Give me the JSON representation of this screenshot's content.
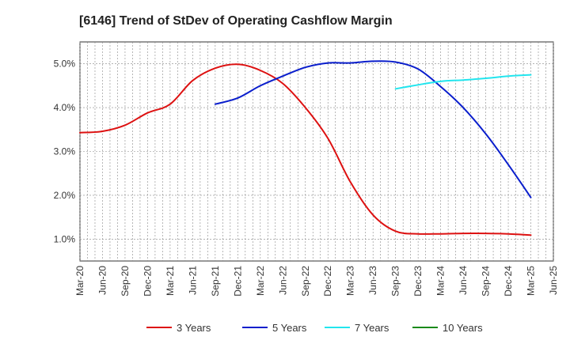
{
  "chart_data": {
    "type": "line",
    "title": "[6146]  Trend of StDev of Operating Cashflow Margin",
    "xlabel": "",
    "ylabel": "",
    "ylim": [
      0.5,
      5.5
    ],
    "y_ticks": [
      1.0,
      2.0,
      3.0,
      4.0,
      5.0
    ],
    "y_tick_labels": [
      "1.0%",
      "2.0%",
      "3.0%",
      "4.0%",
      "5.0%"
    ],
    "x_tick_labels": [
      "Mar-20",
      "Jun-20",
      "Sep-20",
      "Dec-20",
      "Mar-21",
      "Jun-21",
      "Sep-21",
      "Dec-21",
      "Mar-22",
      "Jun-22",
      "Sep-22",
      "Dec-22",
      "Mar-23",
      "Jun-23",
      "Sep-23",
      "Dec-23",
      "Mar-24",
      "Jun-24",
      "Sep-24",
      "Dec-24",
      "Mar-25",
      "Jun-25"
    ],
    "grid": true,
    "legend_position": "bottom",
    "series": [
      {
        "name": "3 Years",
        "color": "#dd1111",
        "x": [
          "Mar-20",
          "Jun-20",
          "Sep-20",
          "Dec-20",
          "Mar-21",
          "Jun-21",
          "Sep-21",
          "Dec-21",
          "Mar-22",
          "Jun-22",
          "Sep-22",
          "Dec-22",
          "Mar-23",
          "Jun-23",
          "Sep-23",
          "Dec-23",
          "Mar-24",
          "Jun-24",
          "Sep-24",
          "Dec-24",
          "Mar-25"
        ],
        "values": [
          3.43,
          3.46,
          3.6,
          3.88,
          4.08,
          4.62,
          4.9,
          4.99,
          4.85,
          4.55,
          4.0,
          3.3,
          2.3,
          1.55,
          1.18,
          1.12,
          1.12,
          1.13,
          1.13,
          1.12,
          1.09
        ]
      },
      {
        "name": "5 Years",
        "color": "#0a1ecc",
        "x": [
          "Sep-21",
          "Dec-21",
          "Mar-22",
          "Jun-22",
          "Sep-22",
          "Dec-22",
          "Mar-23",
          "Jun-23",
          "Sep-23",
          "Dec-23",
          "Mar-24",
          "Jun-24",
          "Sep-24",
          "Dec-24",
          "Mar-25"
        ],
        "values": [
          4.08,
          4.22,
          4.5,
          4.72,
          4.92,
          5.02,
          5.02,
          5.06,
          5.04,
          4.88,
          4.48,
          4.0,
          3.4,
          2.7,
          1.95
        ]
      },
      {
        "name": "7 Years",
        "color": "#22e5ee",
        "x": [
          "Sep-23",
          "Dec-23",
          "Mar-24",
          "Jun-24",
          "Sep-24",
          "Dec-24",
          "Mar-25"
        ],
        "values": [
          4.43,
          4.52,
          4.6,
          4.63,
          4.67,
          4.72,
          4.75
        ]
      },
      {
        "name": "10 Years",
        "color": "#1a8a1a",
        "x": [],
        "values": []
      }
    ]
  }
}
